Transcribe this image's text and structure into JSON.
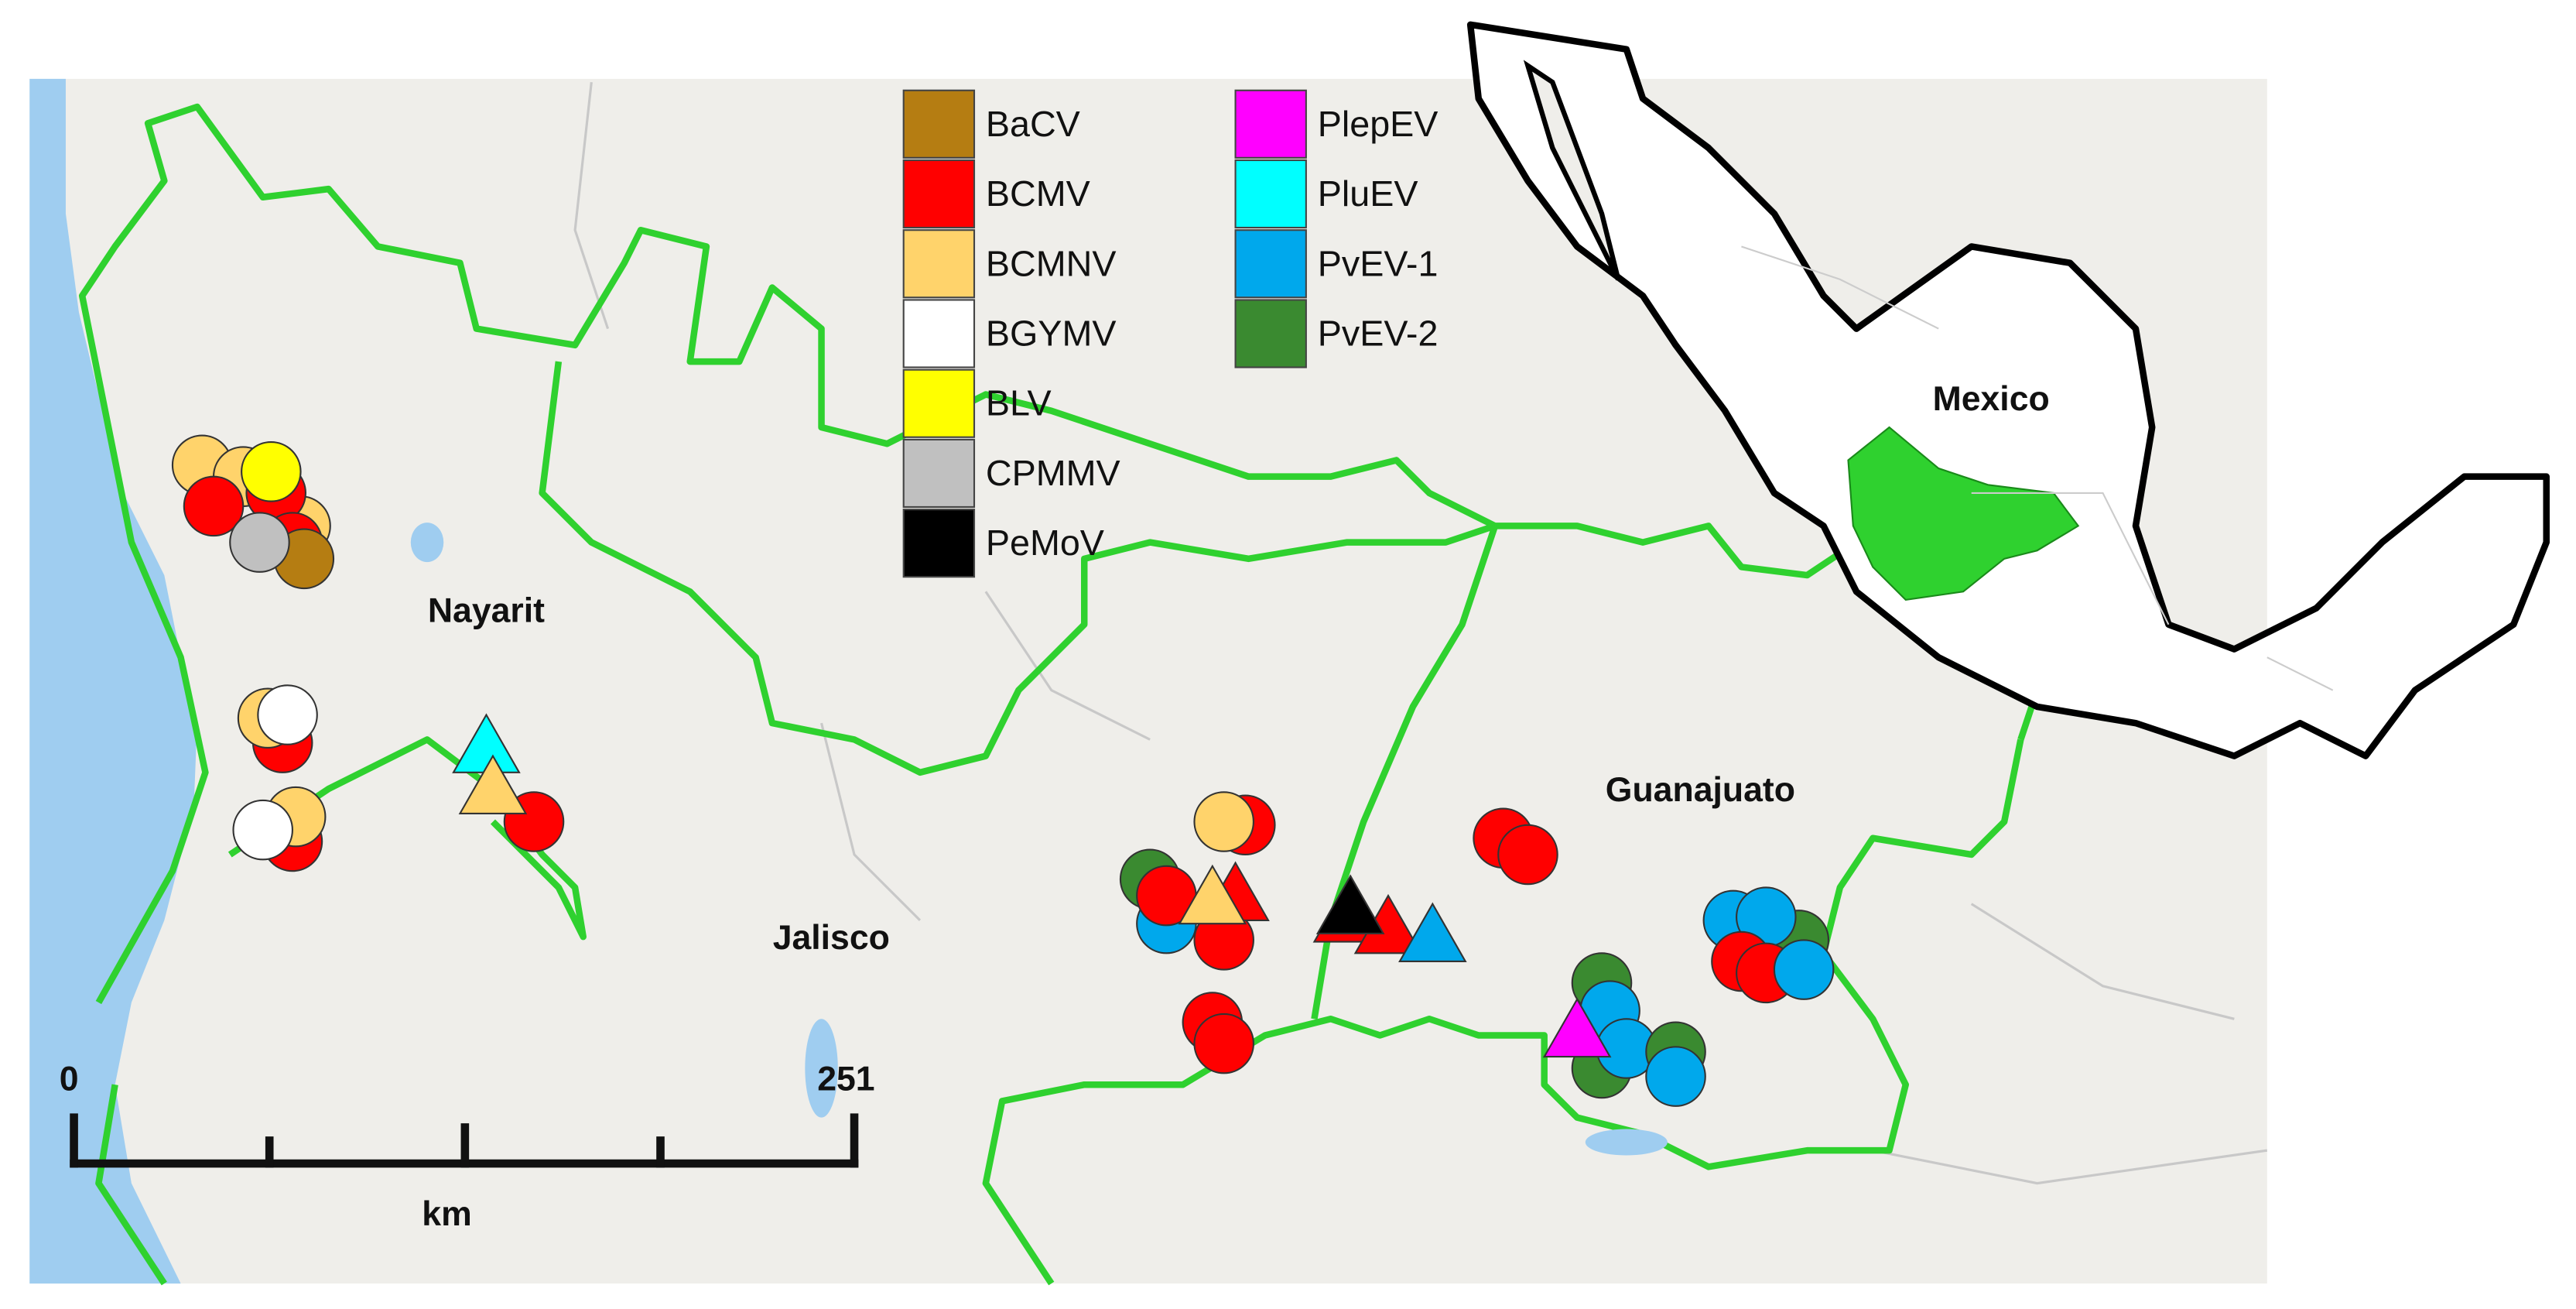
{
  "legend": [
    {
      "name": "BaCV",
      "color": "#b57d12"
    },
    {
      "name": "BCMV",
      "color": "#ff0000"
    },
    {
      "name": "BCMNV",
      "color": "#ffd36b"
    },
    {
      "name": "BGYMV",
      "color": "#ffffff"
    },
    {
      "name": "BLV",
      "color": "#ffff00"
    },
    {
      "name": "CPMMV",
      "color": "#c0c0c0"
    },
    {
      "name": "PeMoV",
      "color": "#000000"
    },
    {
      "name": "PlepEV",
      "color": "#ff00ff"
    },
    {
      "name": "PluEV",
      "color": "#00ffff"
    },
    {
      "name": "PvEV-1",
      "color": "#00a8ec"
    },
    {
      "name": "PvEV-2",
      "color": "#3a8a30"
    }
  ],
  "places": [
    "Nayarit",
    "Jalisco",
    "Guanajuato",
    "Mexico"
  ],
  "scale_bar": {
    "start": 0,
    "end": 251,
    "unit": "km"
  }
}
